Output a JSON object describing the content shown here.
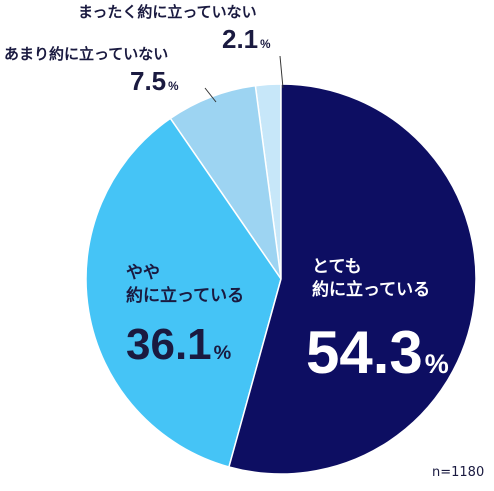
{
  "chart_data": {
    "type": "pie",
    "categories": [
      "とても\n約に立っている",
      "やや\n約に立っている",
      "あまり約に立っていない",
      "まったく約に立っていない"
    ],
    "values": [
      54.3,
      36.1,
      7.5,
      2.1
    ],
    "value_labels": [
      "54.3%",
      "36.1%",
      "7.5%",
      "2.1%"
    ],
    "colors": [
      "#0d0e62",
      "#45c4f6",
      "#9dd4f2",
      "#c7e7f9"
    ],
    "annotation": "n=1180"
  }
}
